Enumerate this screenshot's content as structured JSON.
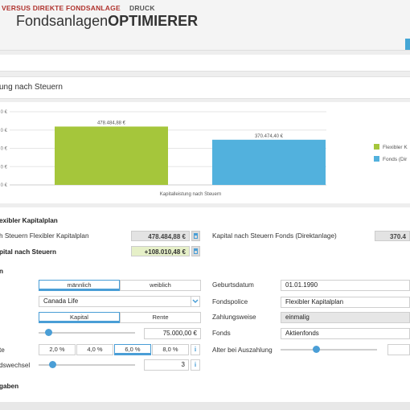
{
  "app": {
    "title_plain": "Fondsanlagen",
    "title_bold": "OPTIMIERER"
  },
  "tabs": {
    "active": "VERSUS DIREKTE FONDSANLAGE",
    "print": "DRUCK"
  },
  "section_title": "ung nach Steuern",
  "chart_data": {
    "type": "bar",
    "categories": [
      ""
    ],
    "series": [
      {
        "name": "Flexibler K",
        "color": "#a5c63b",
        "values": [
          478484.88
        ],
        "label": "478.484,88 €"
      },
      {
        "name": "Fonds (Dir",
        "color": "#52b1dd",
        "values": [
          370474.4
        ],
        "label": "370.474,40 €"
      }
    ],
    "xlabel": "Kapitalleistung nach Steuern",
    "y_ticks": [
      "0 €",
      "0 €",
      "0 €",
      "0 €",
      "0 €"
    ],
    "ylim": [
      0,
      600000
    ],
    "grid": true,
    "legend": "right"
  },
  "form": {
    "heading": "exibler Kapitalplan",
    "label_kapital_flex": "h Steuern Flexibler Kapitalplan",
    "value_kapital_flex": "478.484,88 €",
    "label_kapital_fonds": "Kapital nach Steuern Fonds (Direktanlage)",
    "value_kapital_fonds": "370.4",
    "label_mehr": "pital nach Steuern",
    "value_mehr": "+108.010,48 €",
    "sub_heading": "n",
    "gender_m": "männlich",
    "gender_w": "weiblich",
    "insurer": "Canada Life",
    "payout_kapital": "Kapital",
    "payout_rente": "Rente",
    "amount": "75.000,00 €",
    "label_rate": "te",
    "rates": [
      "2,0 %",
      "4,0 %",
      "6,0 %",
      "8,0 %"
    ],
    "label_switch": "dswechsel",
    "switch_count": "3",
    "label_geburt": "Geburtsdatum",
    "geburt": "01.01.1990",
    "label_police": "Fondspolice",
    "police": "Flexibler Kapitalplan",
    "label_zahlung": "Zahlungsweise",
    "zahlung": "einmalig",
    "label_fonds": "Fonds",
    "fonds": "Aktienfonds",
    "label_alter": "Alter bei Auszahlung",
    "footer_heading": "gaben",
    "info_glyph": "i"
  }
}
